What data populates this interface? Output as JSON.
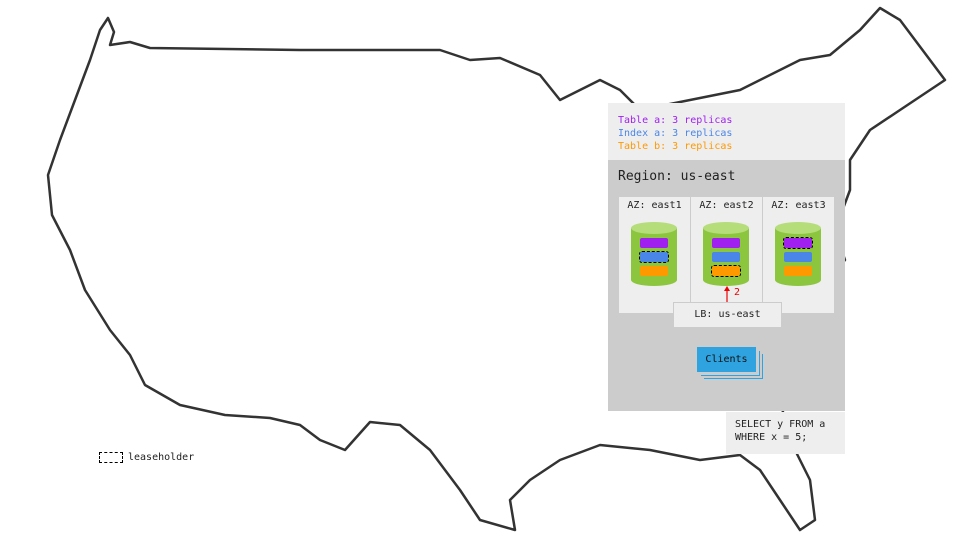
{
  "legend": {
    "items": [
      {
        "label": "Table a: 3 replicas",
        "color": "#a020f0"
      },
      {
        "label": "Index a: 3 replicas",
        "color": "#4a86e8"
      },
      {
        "label": "Table b: 3 replicas",
        "color": "#ff9900"
      }
    ]
  },
  "region": {
    "title": "Region: us-east",
    "azs": [
      {
        "label": "AZ: east1",
        "leaseholder": "index-a"
      },
      {
        "label": "AZ: east2",
        "leaseholder": "table-b"
      },
      {
        "label": "AZ: east3",
        "leaseholder": "table-a"
      }
    ],
    "load_balancer": "LB: us-east",
    "arrow_label": "2",
    "clients": "Clients"
  },
  "query": "SELECT y FROM a\nWHERE x = 5;",
  "leaseholder_legend": "leaseholder",
  "colors": {
    "node": "#8cc63f",
    "table_a": "#a020f0",
    "index_a": "#4a86e8",
    "table_b": "#ff9900",
    "clients": "#2ea3df",
    "arrow": "#e00000"
  }
}
